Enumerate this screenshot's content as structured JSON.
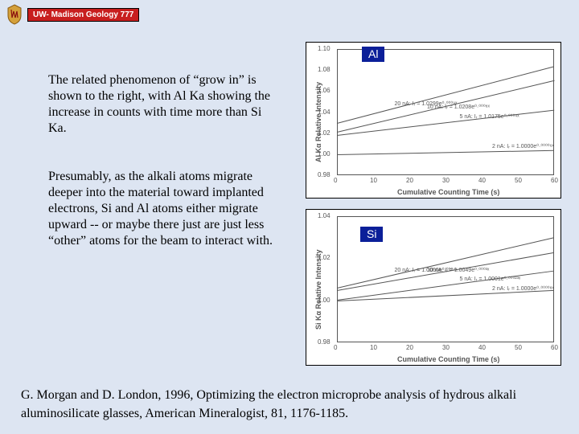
{
  "header": {
    "badge": "UW- Madison Geology  777"
  },
  "paragraphs": {
    "p1": "The related phenomenon of “grow in” is shown to the right, with Al Ka showing the increase in counts with time more than Si Ka.",
    "p2": "Presumably, as the alkali atoms migrate deeper into the material toward implanted electrons, Si and Al atoms either migrate upward -- or maybe there just are just less “other” atoms for the beam to interact with."
  },
  "citation": "G. Morgan and D. London, 1996, Optimizing the electron microprobe analysis of hydrous alkali aluminosilicate glasses, American Mineralogist, 81, 1176-1185.",
  "charts": {
    "al": {
      "label": "Al",
      "type": "line",
      "ylabel": "Al Kα Relative Intensity",
      "xlabel": "Cumulative Counting Time (s)",
      "xlim": [
        0,
        60
      ],
      "xtick_step": 10,
      "ylim": [
        0.98,
        1.1
      ],
      "ytick_step": 0.02,
      "background_color": "#ffffff",
      "axis_color": "#555555",
      "label_fontsize": 9,
      "tick_fontsize": 8,
      "series": [
        {
          "label": "20 nA: Iᵣ = 1.0299e⁰·⁰⁰⁰⁹ˣ",
          "y0": 1.03,
          "y60": 1.084,
          "color": "#555555",
          "line_width": 1
        },
        {
          "label": "10 nA: Iᵣ = 1.0208e⁰·⁰⁰⁰⁸ˣ",
          "y0": 1.021,
          "y60": 1.07,
          "color": "#555555",
          "line_width": 1
        },
        {
          "label": "5 nA: Iᵣ = 1.0175e⁰·⁰⁰⁰⁴ˣ",
          "y0": 1.018,
          "y60": 1.042,
          "color": "#555555",
          "line_width": 1
        },
        {
          "label": "2 nA: Iᵣ = 1.0000e⁰·⁰⁰⁰⁰⁶ˣ",
          "y0": 1.0,
          "y60": 1.004,
          "color": "#555555",
          "line_width": 1
        }
      ]
    },
    "si": {
      "label": "Si",
      "type": "line",
      "ylabel": "Si Kα Relative Intensity",
      "xlabel": "Cumulative Counting Time (s)",
      "xlim": [
        0,
        60
      ],
      "xtick_step": 10,
      "ylim": [
        0.98,
        1.04
      ],
      "ytick_step": 0.02,
      "background_color": "#ffffff",
      "axis_color": "#555555",
      "label_fontsize": 9,
      "tick_fontsize": 8,
      "series": [
        {
          "label": "20 nA: Iᵣ = 1.0060e⁰·⁰⁰⁰⁴ˣ",
          "y0": 1.006,
          "y60": 1.03,
          "color": "#555555",
          "line_width": 1
        },
        {
          "label": "10 nA: Iᵣ = 1.0049e⁰·⁰⁰⁰³ˣ",
          "y0": 1.005,
          "y60": 1.023,
          "color": "#555555",
          "line_width": 1
        },
        {
          "label": "5 nA: Iᵣ = 1.0001e⁰·⁰⁰⁰²³ˣ",
          "y0": 1.0001,
          "y60": 1.014,
          "color": "#555555",
          "line_width": 1
        },
        {
          "label": "2 nA: Iᵣ = 1.0000e⁰·⁰⁰⁰⁰⁸ˣ",
          "y0": 1.0,
          "y60": 1.005,
          "color": "#555555",
          "line_width": 1
        }
      ]
    }
  }
}
